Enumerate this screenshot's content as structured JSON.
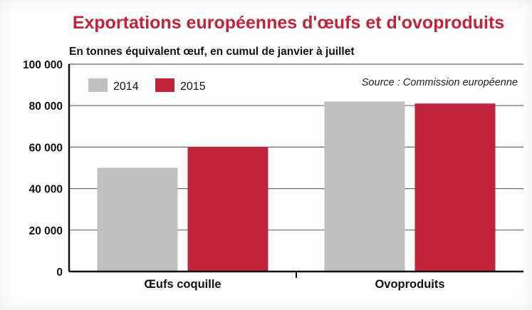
{
  "chart_data": {
    "type": "bar",
    "title": "Exportations européennes d'œufs et d'ovoproduits",
    "subtitle": "En tonnes équivalent œuf, en cumul de janvier à juillet",
    "source": "Source : Commission européenne",
    "categories": [
      "Œufs coquille",
      "Ovoproduits"
    ],
    "series": [
      {
        "name": "2014",
        "values": [
          50000,
          82000
        ],
        "color": "#bfc0c0"
      },
      {
        "name": "2015",
        "values": [
          60000,
          81000
        ],
        "color": "#c0233a"
      }
    ],
    "ylim": [
      0,
      100000
    ],
    "yticks": [
      0,
      20000,
      40000,
      60000,
      80000,
      100000
    ],
    "ytick_labels": [
      "0",
      "20 000",
      "40 000",
      "60 000",
      "80 000",
      "100 000"
    ],
    "grid": true,
    "legend": "top-left",
    "title_color": "#c0233a"
  }
}
